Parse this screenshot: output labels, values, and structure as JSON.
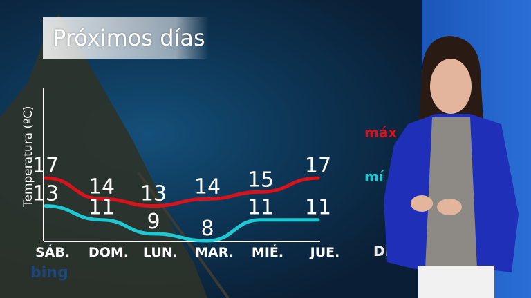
{
  "title": "Próximos días",
  "legend": {
    "max": "máx",
    "min": "mí",
    "days": "Dí"
  },
  "watermark": "bing",
  "colors": {
    "max": "#d9121b",
    "min": "#1ec8d2",
    "panel": "#1f5fc8"
  },
  "chart_data": {
    "type": "line",
    "ylabel": "Temperatura (ºC)",
    "categories": [
      "SÁB.",
      "DOM.",
      "LUN.",
      "MAR.",
      "MIÉ.",
      "JUE."
    ],
    "series": [
      {
        "name": "máx",
        "values": [
          17,
          14,
          13,
          14,
          15,
          17
        ],
        "color": "#d9121b"
      },
      {
        "name": "mí",
        "values": [
          13,
          11,
          9,
          8,
          11,
          11
        ],
        "color": "#1ec8d2"
      }
    ],
    "ylim": [
      8,
      17
    ],
    "grid": false
  }
}
